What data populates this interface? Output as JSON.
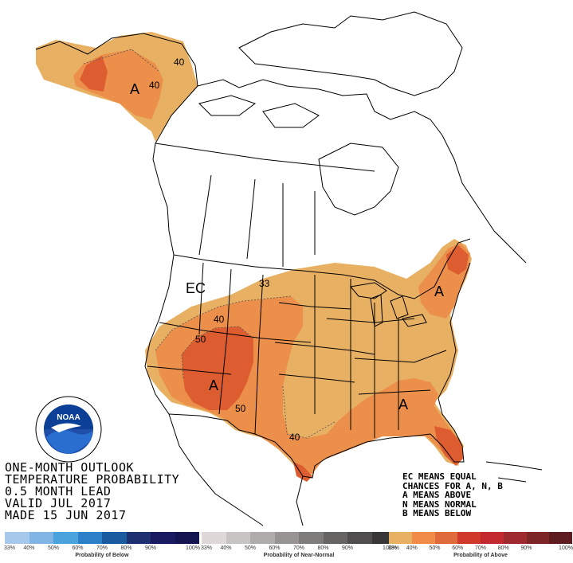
{
  "title_lines": [
    "ONE-MONTH OUTLOOK",
    "TEMPERATURE PROBABILITY",
    "0.5 MONTH LEAD",
    "VALID JUL 2017",
    "MADE 15 JUN 2017"
  ],
  "key_lines": [
    "EC MEANS EQUAL",
    "CHANCES FOR A, N, B",
    "A MEANS ABOVE",
    "N MEANS NORMAL",
    "B MEANS BELOW"
  ],
  "map_labels": {
    "ec": "EC",
    "a_alaska": "A",
    "a_southwest": "A",
    "a_northeast": "A",
    "a_southeast": "A",
    "c40_alaska_a": "40",
    "c40_alaska_b": "40",
    "c33": "33",
    "c40_northwest": "40",
    "c50_west": "50",
    "c50_southwest": "50",
    "c40_texas": "40"
  },
  "scales": [
    {
      "name": "below",
      "label": "Probability of Below",
      "colors": [
        "#a6c8ea",
        "#80b5e5",
        "#4aa3dd",
        "#2b80c8",
        "#1a5a9e",
        "#1f3070",
        "#1a1a60",
        "#141450"
      ],
      "ticks": [
        "33%",
        "40%",
        "50%",
        "60%",
        "70%",
        "80%",
        "90%",
        "100%"
      ]
    },
    {
      "name": "normal",
      "label": "Probability of Near-Normal",
      "colors": [
        "#ded8d8",
        "#c8c4c4",
        "#b0acac",
        "#989494",
        "#7f7c7c",
        "#676464",
        "#4f4d4d",
        "#383636"
      ],
      "ticks": [
        "33%",
        "40%",
        "50%",
        "60%",
        "70%",
        "80%",
        "90%",
        "100%"
      ]
    },
    {
      "name": "above",
      "label": "Probability of Above",
      "colors": [
        "#e8b063",
        "#f08c48",
        "#e06b3a",
        "#cf3a2a",
        "#c22a30",
        "#9e2a30",
        "#7e2528",
        "#5e1c20"
      ],
      "ticks": [
        "33%",
        "40%",
        "50%",
        "60%",
        "70%",
        "80%",
        "90%",
        "100%"
      ]
    }
  ],
  "colors": {
    "above_33": "#e8b063",
    "above_40": "#eb8f4a",
    "above_50": "#dd5d30",
    "land": "#ffffff",
    "outline": "#000000"
  },
  "logo_text": "NOAA"
}
